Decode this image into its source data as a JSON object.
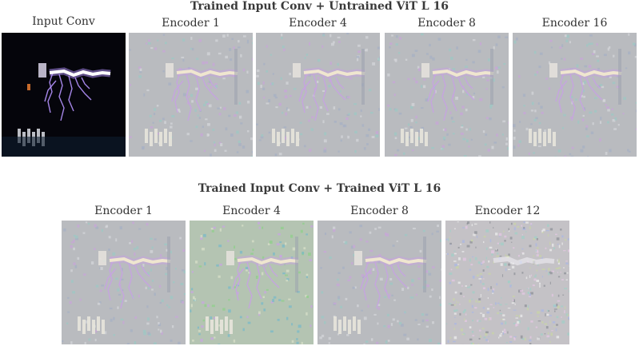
{
  "figure": {
    "row1": {
      "title": "Trained Input Conv + Untrained ViT L 16",
      "panels": [
        {
          "caption": "Input Conv",
          "style": "dark"
        },
        {
          "caption": "Encoder 1",
          "style": "gray"
        },
        {
          "caption": "Encoder 4",
          "style": "gray"
        },
        {
          "caption": "Encoder 8",
          "style": "gray"
        },
        {
          "caption": "Encoder 16",
          "style": "gray"
        }
      ]
    },
    "row2": {
      "title": "Trained Input Conv + Trained ViT L 16",
      "panels": [
        {
          "caption": "Encoder 1",
          "style": "gray"
        },
        {
          "caption": "Encoder 4",
          "style": "green"
        },
        {
          "caption": "Encoder 8",
          "style": "gray"
        },
        {
          "caption": "Encoder 12",
          "style": "noise"
        }
      ]
    }
  }
}
